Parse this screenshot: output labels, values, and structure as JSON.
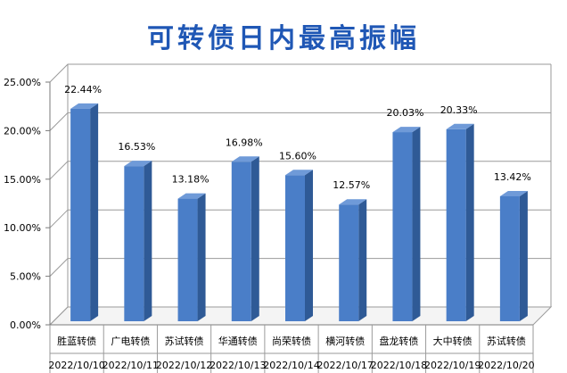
{
  "chart_data": {
    "type": "bar",
    "title": "可转债日内最高振幅",
    "categories": [
      "胜蓝转债",
      "广电转债",
      "苏试转债",
      "华通转债",
      "尚荣转债",
      "横河转债",
      "盘龙转债",
      "大中转债",
      "苏试转债"
    ],
    "dates": [
      "2022/10/10",
      "2022/10/11",
      "2022/10/12",
      "2022/10/13",
      "2022/10/14",
      "2022/10/17",
      "2022/10/18",
      "2022/10/19",
      "2022/10/20"
    ],
    "values": [
      22.44,
      16.53,
      13.18,
      16.98,
      15.6,
      12.57,
      20.03,
      20.33,
      13.42
    ],
    "data_labels": [
      "22.44%",
      "16.53%",
      "13.18%",
      "16.98%",
      "15.60%",
      "12.57%",
      "20.03%",
      "20.33%",
      "13.42%"
    ],
    "yticks": [
      "0.00%",
      "5.00%",
      "10.00%",
      "15.00%",
      "20.00%",
      "25.00%"
    ],
    "ylim": [
      0,
      25
    ],
    "grid": true,
    "legend": "none",
    "bar_color": "#4a7ec8"
  }
}
